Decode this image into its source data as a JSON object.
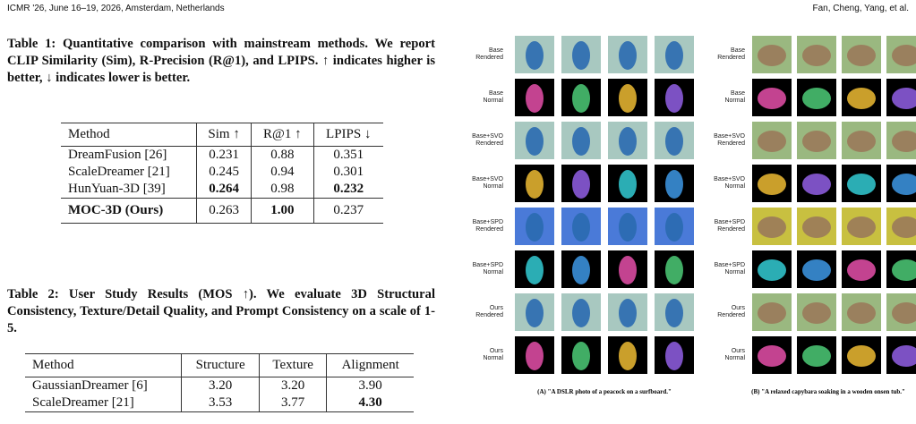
{
  "header": {
    "left": "ICMR '26, June 16–19, 2026, Amsterdam, Netherlands",
    "right": "Fan, Cheng, Yang, et al."
  },
  "table1": {
    "caption": "Table 1: Quantitative comparison with mainstream methods. We report CLIP Similarity (Sim), R-Precision (R@1), and LPIPS. ↑ indicates higher is better, ↓ indicates lower is better.",
    "columns": [
      "Method",
      "Sim ↑",
      "R@1 ↑",
      "LPIPS ↓"
    ],
    "rows": [
      [
        "DreamFusion [26]",
        "0.231",
        "0.88",
        "0.351"
      ],
      [
        "ScaleDreamer [21]",
        "0.245",
        "0.94",
        "0.301"
      ],
      [
        "HunYuan-3D [39]",
        {
          "text": "0.264",
          "bold": true
        },
        "0.98",
        {
          "text": "0.232",
          "bold": true
        }
      ],
      [
        {
          "text": "MOC-3D (Ours)",
          "bold": true
        },
        "0.263",
        {
          "text": "1.00",
          "bold": true
        },
        "0.237"
      ]
    ]
  },
  "table2": {
    "caption": "Table 2: User Study Results (MOS ↑). We evaluate 3D Structural Consistency, Texture/Detail Quality, and Prompt Consistency on a scale of 1-5.",
    "columns": [
      "Method",
      "Structure",
      "Texture",
      "Alignment"
    ],
    "rows": [
      [
        "GaussianDreamer [6]",
        "3.20",
        "3.20",
        "3.90"
      ],
      [
        "ScaleDreamer [21]",
        "3.53",
        "3.77",
        {
          "text": "4.30",
          "bold": true
        }
      ]
    ]
  },
  "figure": {
    "panels": [
      {
        "caption": "(A) \"A DSLR photo of a peacock on a surfboard.\"",
        "row_labels": [
          [
            "Base",
            "Rendered"
          ],
          [
            "Base",
            "Normal"
          ],
          [
            "Base+SVO",
            "Rendered"
          ],
          [
            "Base+SVO",
            "Normal"
          ],
          [
            "Base+SPD",
            "Rendered"
          ],
          [
            "Base+SPD",
            "Normal"
          ],
          [
            "Ours",
            "Rendered"
          ],
          [
            "Ours",
            "Normal"
          ]
        ]
      },
      {
        "caption": "(B) \"A relaxed capybara soaking in a wooden onsen tub.\"",
        "row_labels": [
          [
            "Base",
            "Rendered"
          ],
          [
            "Base",
            "Normal"
          ],
          [
            "Base+SVO",
            "Rendered"
          ],
          [
            "Base+SVO",
            "Normal"
          ],
          [
            "Base+SPD",
            "Rendered"
          ],
          [
            "Base+SPD",
            "Normal"
          ],
          [
            "Ours",
            "Rendered"
          ],
          [
            "Ours",
            "Normal"
          ]
        ]
      }
    ]
  }
}
